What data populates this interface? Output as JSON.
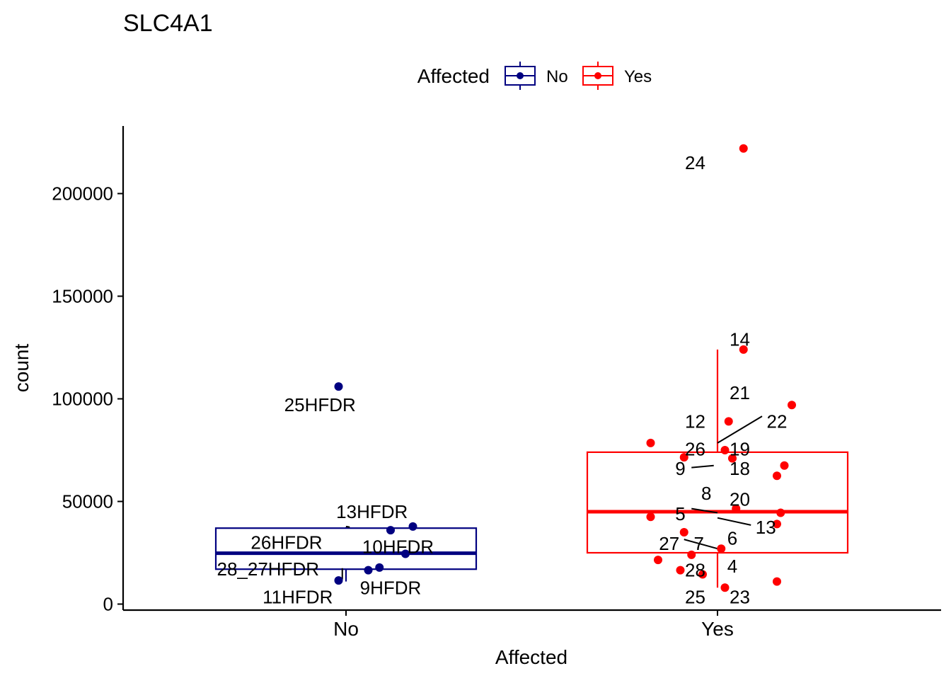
{
  "chart_data": {
    "type": "box",
    "title": "SLC4A1",
    "xlabel": "Affected",
    "ylabel": "count",
    "categories": [
      "No",
      "Yes"
    ],
    "ylim": [
      0,
      235000
    ],
    "yticks": [
      0,
      50000,
      100000,
      150000,
      200000
    ],
    "ytick_labels": [
      "0",
      "50000",
      "100000",
      "150000",
      "200000"
    ],
    "grid": false,
    "legend": {
      "title": "Affected",
      "position": "top",
      "entries": [
        {
          "label": "No",
          "color": "#000080"
        },
        {
          "label": "Yes",
          "color": "#FF0000"
        }
      ]
    },
    "series": [
      {
        "name": "No",
        "category": "No",
        "color": "#000080",
        "box": {
          "whisker_low": 11000,
          "q1": 17000,
          "median": 24800,
          "q3": 37000,
          "whisker_high": 37500
        },
        "points": [
          {
            "x_offset": -0.02,
            "y": 106000
          },
          {
            "x_offset": 0.18,
            "y": 37800
          },
          {
            "x_offset": 0.12,
            "y": 36000
          },
          {
            "x_offset": 0.16,
            "y": 24500
          },
          {
            "x_offset": 0.09,
            "y": 17800
          },
          {
            "x_offset": 0.06,
            "y": 16500
          },
          {
            "x_offset": -0.02,
            "y": 11500
          }
        ],
        "labels": [
          {
            "text": "25HFDR",
            "x_offset": -0.07,
            "y": 97000
          },
          {
            "text": "13HFDR",
            "x_offset": 0.07,
            "y": 45000
          },
          {
            "text": "26HFDR",
            "x_offset": -0.16,
            "y": 30000
          },
          {
            "text": "10HFDR",
            "x_offset": 0.14,
            "y": 28000
          },
          {
            "text": "28_27HFDR",
            "x_offset": -0.21,
            "y": 17000
          },
          {
            "text": "9HFDR",
            "x_offset": 0.12,
            "y": 8000
          },
          {
            "text": "11HFDR",
            "x_offset": -0.13,
            "y": 3500
          }
        ],
        "leaders": [
          {
            "x1_offset": 0.0,
            "y1": 37800,
            "x2_offset": 0.01,
            "y2": 37500
          },
          {
            "x1_offset": -0.01,
            "y1": 17500,
            "x2_offset": -0.01,
            "y2": 12000
          }
        ]
      },
      {
        "name": "Yes",
        "category": "Yes",
        "color": "#FF0000",
        "box": {
          "whisker_low": 8000,
          "q1": 25000,
          "median": 45000,
          "q3": 74000,
          "whisker_high": 124000
        },
        "points": [
          {
            "x_offset": 0.07,
            "y": 222000
          },
          {
            "x_offset": 0.07,
            "y": 124000
          },
          {
            "x_offset": 0.2,
            "y": 97000
          },
          {
            "x_offset": 0.03,
            "y": 89000
          },
          {
            "x_offset": -0.18,
            "y": 78500
          },
          {
            "x_offset": 0.02,
            "y": 75000
          },
          {
            "x_offset": -0.09,
            "y": 71500
          },
          {
            "x_offset": 0.04,
            "y": 71000
          },
          {
            "x_offset": 0.18,
            "y": 67500
          },
          {
            "x_offset": 0.16,
            "y": 62500
          },
          {
            "x_offset": 0.05,
            "y": 46500
          },
          {
            "x_offset": 0.17,
            "y": 44500
          },
          {
            "x_offset": -0.18,
            "y": 42500
          },
          {
            "x_offset": 0.16,
            "y": 39000
          },
          {
            "x_offset": -0.09,
            "y": 35000
          },
          {
            "x_offset": 0.01,
            "y": 27000
          },
          {
            "x_offset": -0.07,
            "y": 24000
          },
          {
            "x_offset": -0.16,
            "y": 21500
          },
          {
            "x_offset": -0.1,
            "y": 16500
          },
          {
            "x_offset": -0.04,
            "y": 14500
          },
          {
            "x_offset": 0.16,
            "y": 11000
          },
          {
            "x_offset": 0.02,
            "y": 8000
          }
        ],
        "labels": [
          {
            "text": "24",
            "x_offset": -0.06,
            "y": 215000
          },
          {
            "text": "14",
            "x_offset": 0.06,
            "y": 129000
          },
          {
            "text": "21",
            "x_offset": 0.06,
            "y": 103000
          },
          {
            "text": "12",
            "x_offset": -0.06,
            "y": 89000
          },
          {
            "text": "22",
            "x_offset": 0.16,
            "y": 89000
          },
          {
            "text": "26",
            "x_offset": -0.06,
            "y": 75500
          },
          {
            "text": "19",
            "x_offset": 0.06,
            "y": 75500
          },
          {
            "text": "9",
            "x_offset": -0.1,
            "y": 66000
          },
          {
            "text": "18",
            "x_offset": 0.06,
            "y": 66000
          },
          {
            "text": "8",
            "x_offset": -0.03,
            "y": 54000
          },
          {
            "text": "20",
            "x_offset": 0.06,
            "y": 51000
          },
          {
            "text": "5",
            "x_offset": -0.1,
            "y": 44000
          },
          {
            "text": "13",
            "x_offset": 0.13,
            "y": 37500
          },
          {
            "text": "6",
            "x_offset": 0.04,
            "y": 32000
          },
          {
            "text": "27",
            "x_offset": -0.13,
            "y": 29500
          },
          {
            "text": "7",
            "x_offset": -0.05,
            "y": 29500
          },
          {
            "text": "4",
            "x_offset": 0.04,
            "y": 18500
          },
          {
            "text": "28",
            "x_offset": -0.06,
            "y": 16500
          },
          {
            "text": "25",
            "x_offset": -0.06,
            "y": 3500
          },
          {
            "text": "23",
            "x_offset": 0.06,
            "y": 3500
          }
        ],
        "leaders": [
          {
            "x1_offset": 0.0,
            "y1": 78500,
            "x2_offset": 0.12,
            "y2": 91500
          },
          {
            "x1_offset": -0.07,
            "y1": 66500,
            "x2_offset": -0.01,
            "y2": 67500
          },
          {
            "x1_offset": -0.07,
            "y1": 46500,
            "x2_offset": 0.0,
            "y2": 44500
          },
          {
            "x1_offset": 0.0,
            "y1": 42000,
            "x2_offset": 0.09,
            "y2": 38500
          },
          {
            "x1_offset": -0.09,
            "y1": 31500,
            "x2_offset": 0.0,
            "y2": 27000
          }
        ]
      }
    ]
  }
}
